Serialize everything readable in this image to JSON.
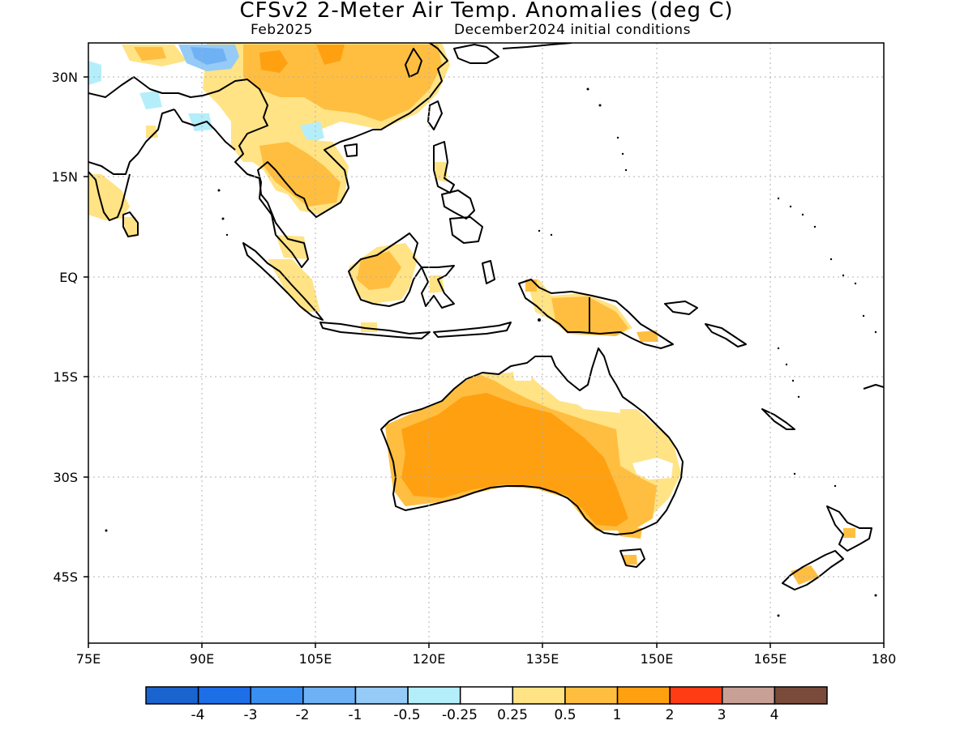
{
  "header": {
    "title": "CFSv2 2-Meter Air Temp. Anomalies (deg C)",
    "valid_month": "Feb2025",
    "initial_conditions": "December2024 initial conditions"
  },
  "map": {
    "lon_range": [
      75,
      180
    ],
    "lat_range": [
      -53,
      39
    ],
    "x_ticks": [
      "75E",
      "90E",
      "105E",
      "120E",
      "135E",
      "150E",
      "165E",
      "180"
    ],
    "y_ticks": [
      "30N",
      "15N",
      "EQ",
      "15S",
      "30S",
      "45S"
    ],
    "colors": {
      "coast": "#000000",
      "grid": "#b0b0b0",
      "bg": "#ffffff"
    }
  },
  "colorbar": {
    "colors": [
      "#1a64d0",
      "#1e6ee8",
      "#3a8ff0",
      "#6fb1f5",
      "#96cbf7",
      "#b4eefa",
      "#ffffff",
      "#ffe385",
      "#ffbe40",
      "#ffa010",
      "#ff3c14",
      "#c8a096",
      "#7a4b3a"
    ],
    "labels": [
      "-4",
      "-3",
      "-2",
      "-1",
      "-0.5",
      "-0.25",
      "0.25",
      "0.5",
      "1",
      "2",
      "3",
      "4"
    ]
  }
}
